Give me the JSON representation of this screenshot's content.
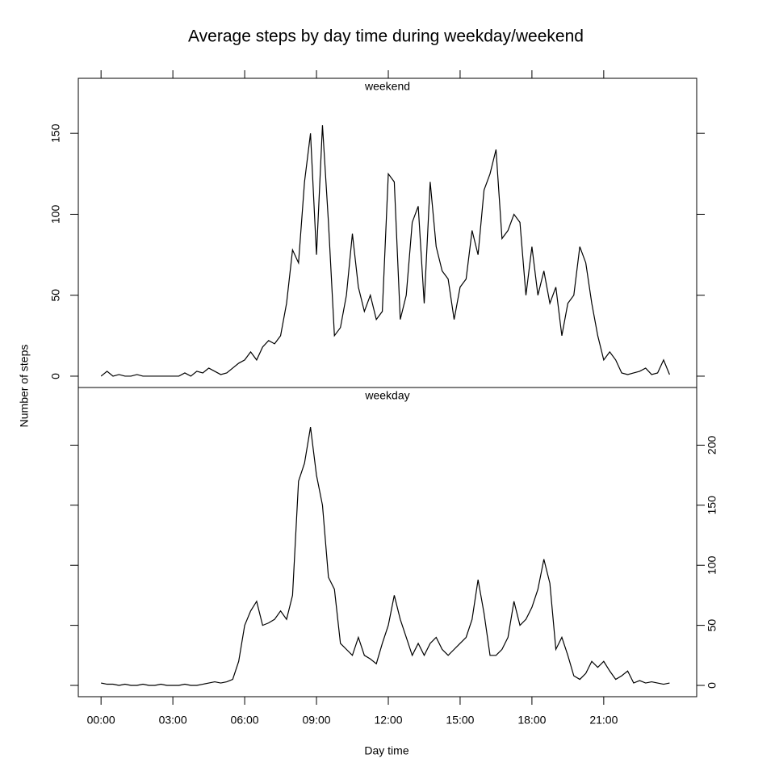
{
  "chart_data": {
    "type": "line",
    "title": "Average steps by day time during weekday/weekend",
    "xlabel": "Day time",
    "ylabel": "Number of steps",
    "xlim": [
      -57,
      1493
    ],
    "xticks": [
      {
        "value": 0,
        "label": "00:00"
      },
      {
        "value": 180,
        "label": "03:00"
      },
      {
        "value": 360,
        "label": "06:00"
      },
      {
        "value": 540,
        "label": "09:00"
      },
      {
        "value": 720,
        "label": "12:00"
      },
      {
        "value": 900,
        "label": "15:00"
      },
      {
        "value": 1080,
        "label": "18:00"
      },
      {
        "value": 1260,
        "label": "21:00"
      }
    ],
    "x": [
      0,
      15,
      30,
      45,
      60,
      75,
      90,
      105,
      120,
      135,
      150,
      165,
      180,
      195,
      210,
      225,
      240,
      255,
      270,
      285,
      300,
      315,
      330,
      345,
      360,
      375,
      390,
      405,
      420,
      435,
      450,
      465,
      480,
      495,
      510,
      525,
      540,
      555,
      570,
      585,
      600,
      615,
      630,
      645,
      660,
      675,
      690,
      705,
      720,
      735,
      750,
      765,
      780,
      795,
      810,
      825,
      840,
      855,
      870,
      885,
      900,
      915,
      930,
      945,
      960,
      975,
      990,
      1005,
      1020,
      1035,
      1050,
      1065,
      1080,
      1095,
      1110,
      1125,
      1140,
      1155,
      1170,
      1185,
      1200,
      1215,
      1230,
      1245,
      1260,
      1275,
      1290,
      1305,
      1320,
      1335,
      1350,
      1365,
      1380,
      1395,
      1410,
      1425
    ],
    "series": [
      {
        "name": "weekday",
        "color": "#000000",
        "axis_side": "right",
        "ylim": [
          -9.4,
          248
        ],
        "yticks": [
          0,
          50,
          100,
          150,
          200
        ],
        "values": [
          2,
          1,
          1,
          0,
          1,
          0,
          0,
          1,
          0,
          0,
          1,
          0,
          0,
          0,
          1,
          0,
          0,
          1,
          2,
          3,
          2,
          3,
          5,
          20,
          50,
          62,
          70,
          50,
          52,
          55,
          62,
          55,
          75,
          170,
          185,
          215,
          175,
          150,
          90,
          80,
          35,
          30,
          25,
          40,
          25,
          22,
          18,
          35,
          50,
          75,
          55,
          40,
          25,
          35,
          25,
          35,
          40,
          30,
          25,
          30,
          35,
          40,
          55,
          88,
          60,
          25,
          25,
          30,
          40,
          70,
          50,
          55,
          65,
          80,
          105,
          85,
          30,
          40,
          25,
          8,
          5,
          10,
          20,
          15,
          20,
          12,
          5,
          8,
          12,
          2,
          4,
          2,
          3,
          2,
          1,
          2
        ]
      },
      {
        "name": "weekend",
        "color": "#000000",
        "axis_side": "left",
        "ylim": [
          -7,
          184
        ],
        "yticks": [
          0,
          50,
          100,
          150
        ],
        "values": [
          0,
          3,
          0,
          1,
          0,
          0,
          1,
          0,
          0,
          0,
          0,
          0,
          0,
          0,
          2,
          0,
          3,
          2,
          5,
          3,
          1,
          2,
          5,
          8,
          10,
          15,
          10,
          18,
          22,
          20,
          25,
          45,
          78,
          70,
          120,
          150,
          75,
          155,
          95,
          25,
          30,
          50,
          88,
          55,
          40,
          50,
          35,
          40,
          125,
          120,
          35,
          50,
          95,
          105,
          45,
          120,
          80,
          65,
          60,
          35,
          55,
          60,
          90,
          75,
          115,
          125,
          140,
          85,
          90,
          100,
          95,
          50,
          80,
          50,
          65,
          45,
          55,
          25,
          45,
          50,
          80,
          70,
          45,
          25,
          10,
          15,
          10,
          2,
          1,
          2,
          3,
          5,
          1,
          2,
          10,
          1
        ]
      }
    ]
  }
}
